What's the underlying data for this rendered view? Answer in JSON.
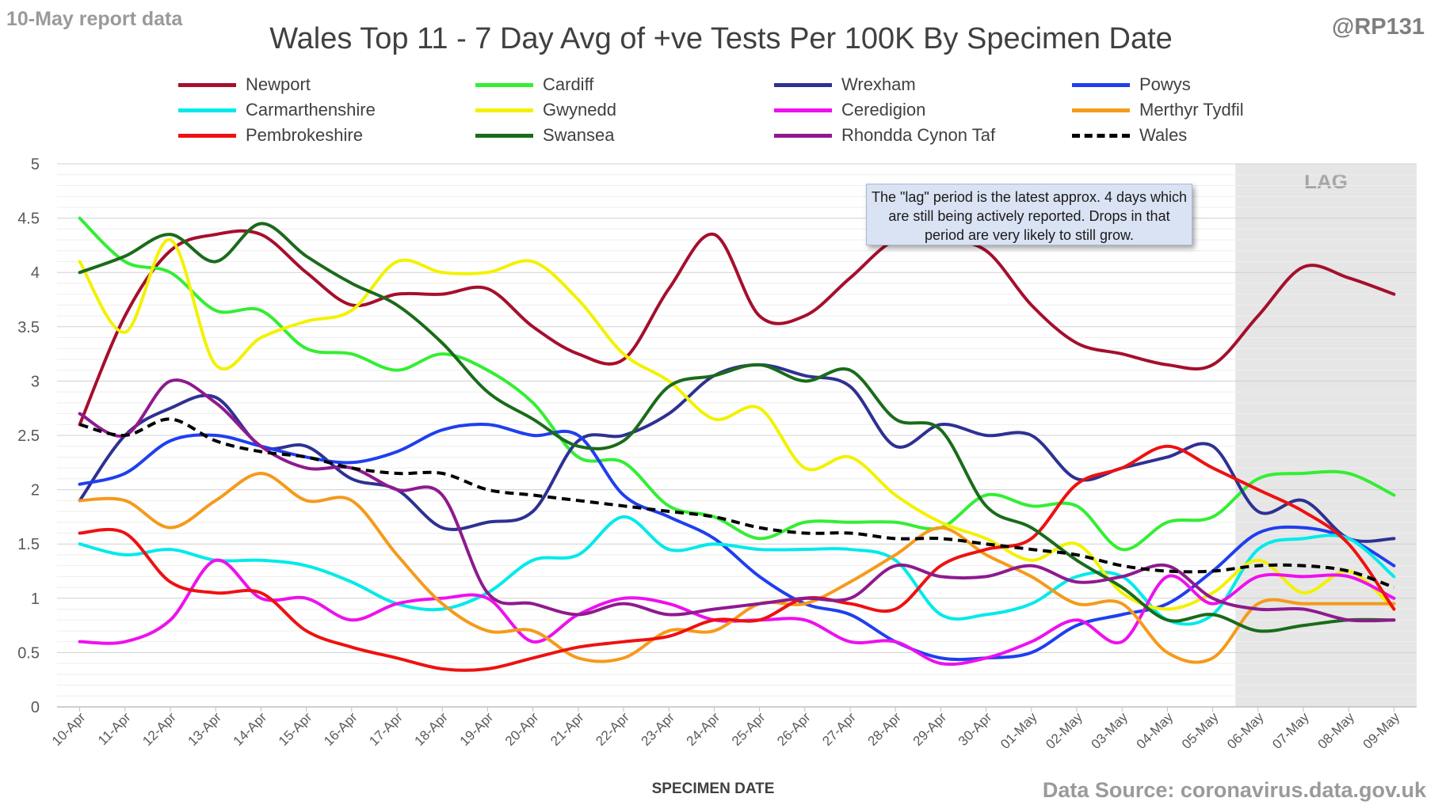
{
  "header": {
    "report_label": "10-May report data",
    "title": "Wales Top 11 - 7 Day Avg of +ve Tests Per 100K By Specimen Date",
    "handle": "@RP131"
  },
  "footer": {
    "source": "Data Source: coronavirus.data.gov.uk"
  },
  "annotation": {
    "text": "The \"lag\" period is the latest approx. 4 days which are still being actively reported.  Drops in that period are very likely to still grow."
  },
  "chart_data": {
    "type": "line",
    "title": "Wales Top 11 - 7 Day Avg of +ve Tests Per 100K By Specimen Date",
    "xlabel": "SPECIMEN DATE",
    "ylabel": "",
    "ylim": [
      0,
      5
    ],
    "yticks": [
      "0",
      "0.5",
      "1",
      "1.5",
      "2",
      "2.5",
      "3",
      "3.5",
      "4",
      "4.5",
      "5"
    ],
    "grid": true,
    "legend_position": "top",
    "lag_label": "LAG",
    "lag_region": [
      "06-May",
      "09-May"
    ],
    "categories": [
      "10-Apr",
      "11-Apr",
      "12-Apr",
      "13-Apr",
      "14-Apr",
      "15-Apr",
      "16-Apr",
      "17-Apr",
      "18-Apr",
      "19-Apr",
      "20-Apr",
      "21-Apr",
      "22-Apr",
      "23-Apr",
      "24-Apr",
      "25-Apr",
      "26-Apr",
      "27-Apr",
      "28-Apr",
      "29-Apr",
      "30-Apr",
      "01-May",
      "02-May",
      "03-May",
      "04-May",
      "05-May",
      "06-May",
      "07-May",
      "08-May",
      "09-May"
    ],
    "series": [
      {
        "name": "Newport",
        "color": "#a50f2d",
        "dashed": false,
        "values": [
          2.6,
          3.6,
          4.2,
          4.35,
          4.35,
          4.0,
          3.7,
          3.8,
          3.8,
          3.85,
          3.5,
          3.25,
          3.2,
          3.85,
          4.35,
          3.6,
          3.6,
          3.95,
          4.3,
          4.3,
          4.2,
          3.7,
          3.35,
          3.25,
          3.15,
          3.15,
          3.6,
          4.05,
          3.95,
          3.8
        ]
      },
      {
        "name": "Cardiff",
        "color": "#33ee33",
        "dashed": false,
        "values": [
          4.5,
          4.1,
          4.0,
          3.65,
          3.65,
          3.3,
          3.25,
          3.1,
          3.25,
          3.1,
          2.8,
          2.3,
          2.25,
          1.85,
          1.75,
          1.55,
          1.7,
          1.7,
          1.7,
          1.65,
          1.95,
          1.85,
          1.85,
          1.45,
          1.7,
          1.75,
          2.1,
          2.15,
          2.15,
          1.95
        ]
      },
      {
        "name": "Wrexham",
        "color": "#2e3192",
        "dashed": false,
        "values": [
          1.9,
          2.5,
          2.75,
          2.85,
          2.4,
          2.4,
          2.1,
          2.0,
          1.65,
          1.7,
          1.8,
          2.45,
          2.5,
          2.7,
          3.05,
          3.15,
          3.05,
          2.95,
          2.4,
          2.6,
          2.5,
          2.5,
          2.1,
          2.2,
          2.3,
          2.4,
          1.8,
          1.9,
          1.55,
          1.55
        ]
      },
      {
        "name": "Powys",
        "color": "#1f3fee",
        "dashed": false,
        "values": [
          2.05,
          2.15,
          2.45,
          2.5,
          2.4,
          2.3,
          2.25,
          2.35,
          2.55,
          2.6,
          2.5,
          2.5,
          1.95,
          1.75,
          1.55,
          1.2,
          0.95,
          0.85,
          0.6,
          0.45,
          0.45,
          0.5,
          0.75,
          0.85,
          0.95,
          1.25,
          1.6,
          1.65,
          1.55,
          1.3
        ]
      },
      {
        "name": "Carmarthenshire",
        "color": "#00eaea",
        "dashed": false,
        "values": [
          1.5,
          1.4,
          1.45,
          1.35,
          1.35,
          1.3,
          1.15,
          0.95,
          0.9,
          1.05,
          1.35,
          1.4,
          1.75,
          1.45,
          1.5,
          1.45,
          1.45,
          1.45,
          1.35,
          0.85,
          0.85,
          0.95,
          1.2,
          1.2,
          0.8,
          0.85,
          1.45,
          1.55,
          1.55,
          1.2
        ]
      },
      {
        "name": "Gwynedd",
        "color": "#f2f200",
        "dashed": false,
        "values": [
          4.1,
          3.45,
          4.3,
          3.15,
          3.4,
          3.55,
          3.65,
          4.1,
          4.0,
          4.0,
          4.1,
          3.75,
          3.25,
          3.0,
          2.65,
          2.75,
          2.2,
          2.3,
          1.95,
          1.7,
          1.55,
          1.35,
          1.5,
          1.05,
          0.9,
          1.05,
          1.35,
          1.05,
          1.25,
          0.9
        ]
      },
      {
        "name": "Ceredigion",
        "color": "#ee10ee",
        "dashed": false,
        "values": [
          0.6,
          0.6,
          0.8,
          1.35,
          1.0,
          1.0,
          0.8,
          0.95,
          1.0,
          1.0,
          0.6,
          0.85,
          1.0,
          0.95,
          0.8,
          0.8,
          0.8,
          0.6,
          0.6,
          0.4,
          0.45,
          0.6,
          0.8,
          0.6,
          1.2,
          0.95,
          1.2,
          1.2,
          1.2,
          1.0
        ]
      },
      {
        "name": "Merthyr Tydfil",
        "color": "#f59a1a",
        "dashed": false,
        "values": [
          1.9,
          1.9,
          1.65,
          1.9,
          2.15,
          1.9,
          1.9,
          1.4,
          0.95,
          0.7,
          0.7,
          0.45,
          0.45,
          0.7,
          0.7,
          0.95,
          0.95,
          1.15,
          1.4,
          1.65,
          1.4,
          1.2,
          0.95,
          0.95,
          0.5,
          0.45,
          0.95,
          0.95,
          0.95,
          0.95
        ]
      },
      {
        "name": "Pembrokeshire",
        "color": "#ee1111",
        "dashed": false,
        "values": [
          1.6,
          1.6,
          1.15,
          1.05,
          1.05,
          0.7,
          0.55,
          0.45,
          0.35,
          0.35,
          0.45,
          0.55,
          0.6,
          0.65,
          0.8,
          0.8,
          1.0,
          0.95,
          0.9,
          1.3,
          1.45,
          1.55,
          2.05,
          2.2,
          2.4,
          2.2,
          2.0,
          1.8,
          1.5,
          0.9
        ]
      },
      {
        "name": "Swansea",
        "color": "#1a6b1a",
        "dashed": false,
        "values": [
          4.0,
          4.15,
          4.35,
          4.1,
          4.45,
          4.15,
          3.9,
          3.7,
          3.35,
          2.9,
          2.65,
          2.4,
          2.45,
          2.95,
          3.05,
          3.15,
          3.0,
          3.1,
          2.65,
          2.55,
          1.85,
          1.65,
          1.35,
          1.1,
          0.8,
          0.85,
          0.7,
          0.75,
          0.8,
          0.8
        ]
      },
      {
        "name": "Rhondda Cynon Taf",
        "color": "#8e1a8e",
        "dashed": false,
        "values": [
          2.7,
          2.5,
          3.0,
          2.8,
          2.4,
          2.2,
          2.2,
          2.0,
          1.95,
          1.05,
          0.95,
          0.85,
          0.95,
          0.85,
          0.9,
          0.95,
          1.0,
          1.0,
          1.3,
          1.2,
          1.2,
          1.3,
          1.15,
          1.2,
          1.3,
          1.0,
          0.9,
          0.9,
          0.8,
          0.8
        ]
      },
      {
        "name": "Wales",
        "color": "#000000",
        "dashed": true,
        "values": [
          2.6,
          2.5,
          2.65,
          2.45,
          2.35,
          2.3,
          2.2,
          2.15,
          2.15,
          2.0,
          1.95,
          1.9,
          1.85,
          1.8,
          1.75,
          1.65,
          1.6,
          1.6,
          1.55,
          1.55,
          1.5,
          1.45,
          1.4,
          1.3,
          1.25,
          1.25,
          1.3,
          1.3,
          1.25,
          1.1
        ]
      }
    ]
  }
}
